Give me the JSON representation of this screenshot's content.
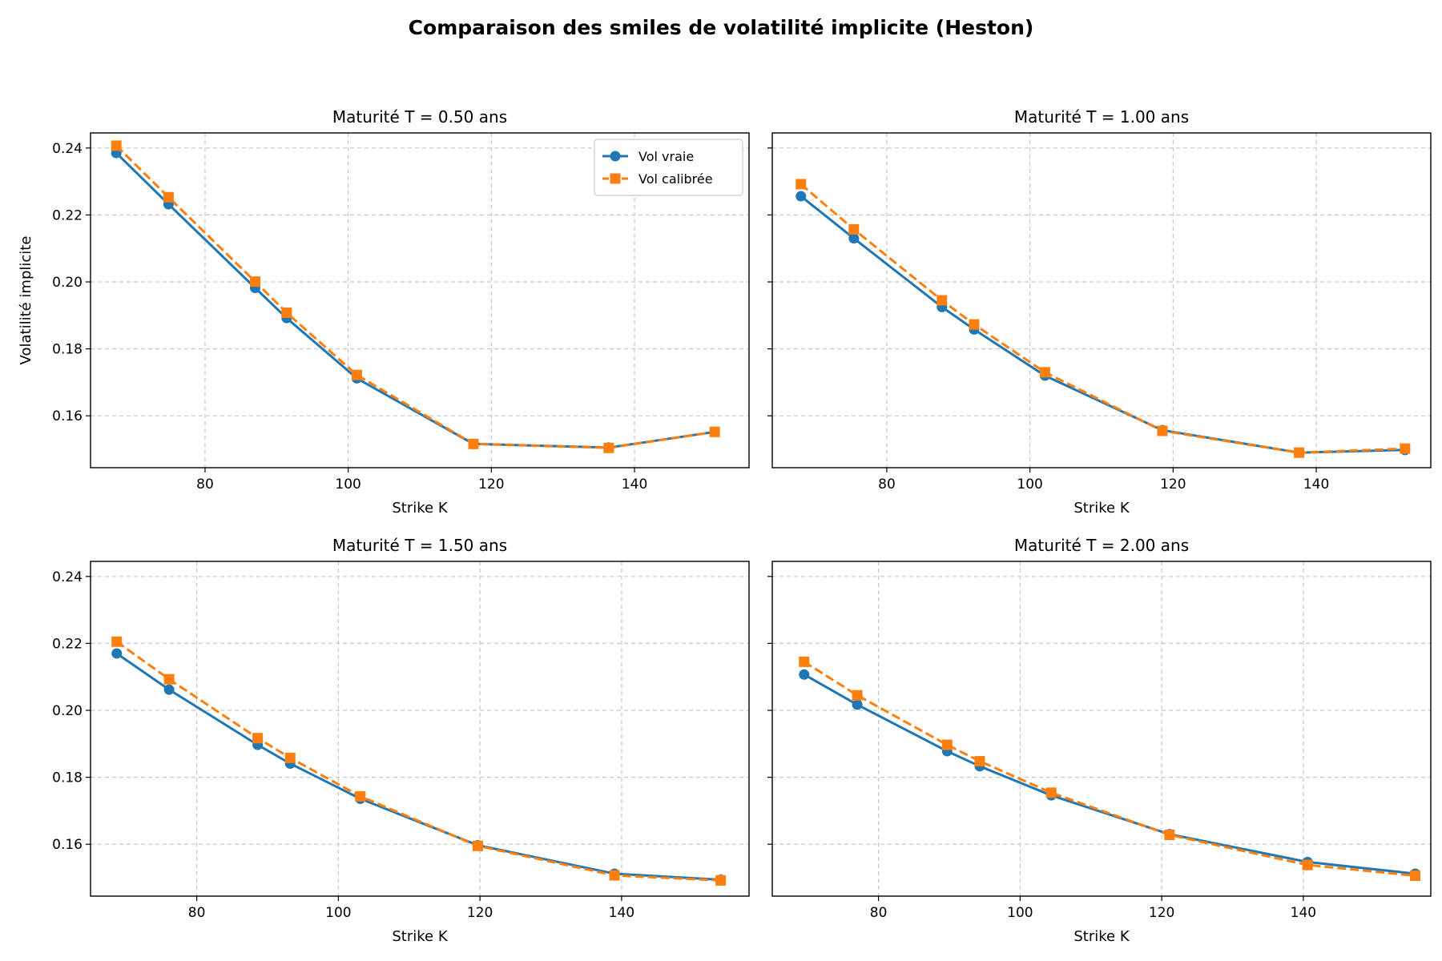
{
  "figure_title": "Comparaison des smiles de volatilité implicite (Heston)",
  "colors": {
    "vraie": "#1f77b4",
    "calibree": "#ff7f0e",
    "grid": "#c8c8c8"
  },
  "chart_data": [
    {
      "type": "line",
      "title": "Maturité T = 0.50 ans",
      "xlabel": "Strike K",
      "ylabel": "Volatilité implicite",
      "xlim": [
        64,
        156
      ],
      "ylim": [
        0.1445,
        0.2445
      ],
      "xticks": [
        80,
        100,
        120,
        140
      ],
      "yticks": [
        0.16,
        0.18,
        0.2,
        0.22,
        0.24
      ],
      "ytick_labels_shown": true,
      "grid": true,
      "legend": "top-right",
      "series": [
        {
          "name": "Vol vraie",
          "style": "solid",
          "marker": "circle",
          "x": [
            67.6,
            74.9,
            87.0,
            91.4,
            101.2,
            117.5,
            136.4,
            151.2
          ],
          "y": [
            0.2385,
            0.2232,
            0.1982,
            0.1892,
            0.1712,
            0.1516,
            0.1505,
            0.1552
          ]
        },
        {
          "name": "Vol calibrée",
          "style": "dashed",
          "marker": "square",
          "x": [
            67.6,
            74.9,
            87.0,
            91.4,
            101.2,
            117.5,
            136.4,
            151.2
          ],
          "y": [
            0.2407,
            0.2253,
            0.2001,
            0.1908,
            0.1722,
            0.1516,
            0.1504,
            0.1552
          ]
        }
      ]
    },
    {
      "type": "line",
      "title": "Maturité T = 1.00 ans",
      "xlabel": "Strike K",
      "ylabel": "",
      "xlim": [
        64,
        156
      ],
      "ylim": [
        0.1445,
        0.2445
      ],
      "xticks": [
        80,
        100,
        120,
        140
      ],
      "yticks": [
        0.16,
        0.18,
        0.2,
        0.22,
        0.24
      ],
      "ytick_labels_shown": false,
      "grid": true,
      "legend": "",
      "series": [
        {
          "name": "Vol vraie",
          "style": "solid",
          "marker": "circle",
          "x": [
            68.0,
            75.4,
            87.7,
            92.2,
            102.1,
            118.5,
            137.6,
            152.4
          ],
          "y": [
            0.2256,
            0.213,
            0.1925,
            0.1858,
            0.172,
            0.1557,
            0.149,
            0.1498
          ]
        },
        {
          "name": "Vol calibrée",
          "style": "dashed",
          "marker": "square",
          "x": [
            68.0,
            75.4,
            87.7,
            92.2,
            102.1,
            118.5,
            137.6,
            152.4
          ],
          "y": [
            0.2292,
            0.2157,
            0.1945,
            0.1873,
            0.173,
            0.1555,
            0.149,
            0.1502
          ]
        }
      ]
    },
    {
      "type": "line",
      "title": "Maturité T = 1.50 ans",
      "xlabel": "Strike K",
      "ylabel": "",
      "xlim": [
        65,
        158
      ],
      "ylim": [
        0.1445,
        0.2445
      ],
      "xticks": [
        80,
        100,
        120,
        140
      ],
      "yticks": [
        0.16,
        0.18,
        0.2,
        0.22,
        0.24
      ],
      "ytick_labels_shown": true,
      "grid": true,
      "legend": "",
      "series": [
        {
          "name": "Vol vraie",
          "style": "solid",
          "marker": "circle",
          "x": [
            68.7,
            76.1,
            88.6,
            93.2,
            103.1,
            119.7,
            139.0,
            154.0
          ],
          "y": [
            0.217,
            0.2062,
            0.1897,
            0.1841,
            0.1736,
            0.1597,
            0.1512,
            0.1494
          ]
        },
        {
          "name": "Vol calibrée",
          "style": "dashed",
          "marker": "square",
          "x": [
            68.7,
            76.1,
            88.6,
            93.2,
            103.1,
            119.7,
            139.0,
            154.0
          ],
          "y": [
            0.2205,
            0.2093,
            0.1917,
            0.1858,
            0.1743,
            0.1595,
            0.1507,
            0.1492
          ]
        }
      ]
    },
    {
      "type": "line",
      "title": "Maturité T = 2.00 ans",
      "xlabel": "Strike K",
      "ylabel": "",
      "xlim": [
        65,
        158
      ],
      "ylim": [
        0.1445,
        0.2445
      ],
      "xticks": [
        80,
        100,
        120,
        140
      ],
      "yticks": [
        0.16,
        0.18,
        0.2,
        0.22,
        0.24
      ],
      "ytick_labels_shown": false,
      "grid": true,
      "legend": "",
      "series": [
        {
          "name": "Vol vraie",
          "style": "solid",
          "marker": "circle",
          "x": [
            69.5,
            77.0,
            89.7,
            94.3,
            104.4,
            121.1,
            140.6,
            155.8
          ],
          "y": [
            0.2107,
            0.2017,
            0.1878,
            0.1833,
            0.1746,
            0.163,
            0.1547,
            0.1512
          ]
        },
        {
          "name": "Vol calibrée",
          "style": "dashed",
          "marker": "square",
          "x": [
            69.5,
            77.0,
            89.7,
            94.3,
            104.4,
            121.1,
            140.6,
            155.8
          ],
          "y": [
            0.2145,
            0.2045,
            0.1897,
            0.1848,
            0.1754,
            0.1628,
            0.1538,
            0.1506
          ]
        }
      ]
    }
  ]
}
